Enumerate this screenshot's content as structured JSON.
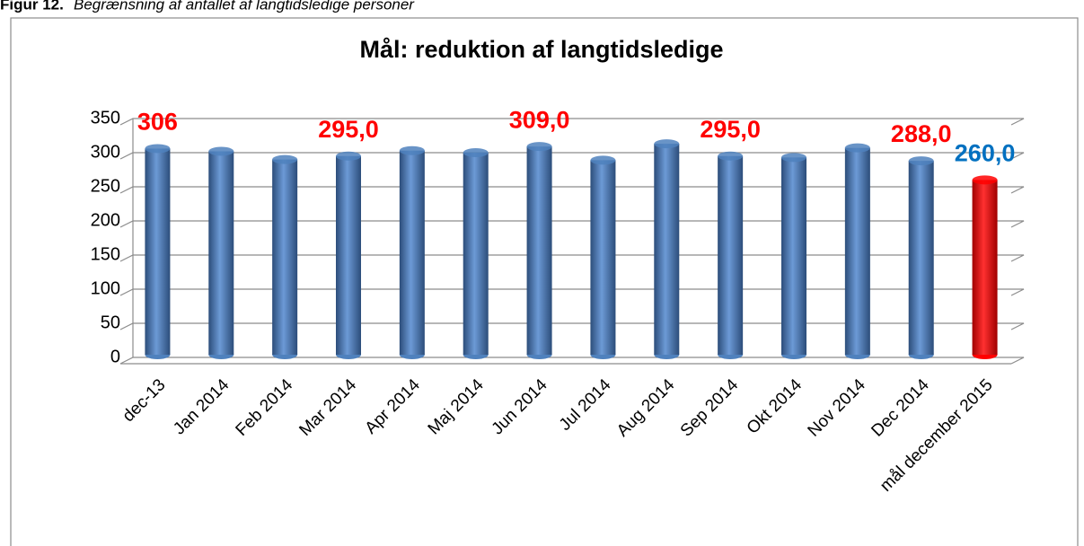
{
  "caption": {
    "label": "Figur 12.",
    "text": "Begrænsning af antallet af langtidsledige personer"
  },
  "chart_data": {
    "type": "bar",
    "title": "Mål: reduktion af langtidsledige",
    "categories": [
      "dec-13",
      "Jan 2014",
      "Feb 2014",
      "Mar 2014",
      "Apr 2014",
      "Maj 2014",
      "Jun 2014",
      "Jul 2014",
      "Aug 2014",
      "Sep 2014",
      "Okt 2014",
      "Nov 2014",
      "Dec 2014",
      "mål december 2015"
    ],
    "values": [
      306,
      302,
      290,
      295,
      303,
      300,
      309,
      289,
      313,
      295,
      293,
      307,
      288,
      260
    ],
    "value_labels": [
      "306",
      null,
      null,
      "295,0",
      null,
      null,
      "309,0",
      null,
      null,
      "295,0",
      null,
      null,
      "288,0",
      "260,0"
    ],
    "colors": [
      "#4f81bd",
      "#4f81bd",
      "#4f81bd",
      "#4f81bd",
      "#4f81bd",
      "#4f81bd",
      "#4f81bd",
      "#4f81bd",
      "#4f81bd",
      "#4f81bd",
      "#4f81bd",
      "#4f81bd",
      "#4f81bd",
      "#ff0000"
    ],
    "label_colors": [
      "#ff0000",
      null,
      null,
      "#ff0000",
      null,
      null,
      "#ff0000",
      null,
      null,
      "#ff0000",
      null,
      null,
      "#ff0000",
      "#0070c0"
    ],
    "ylim": [
      0,
      350
    ],
    "yticks": [
      0,
      50,
      100,
      150,
      200,
      250,
      300,
      350
    ],
    "grid": true
  }
}
